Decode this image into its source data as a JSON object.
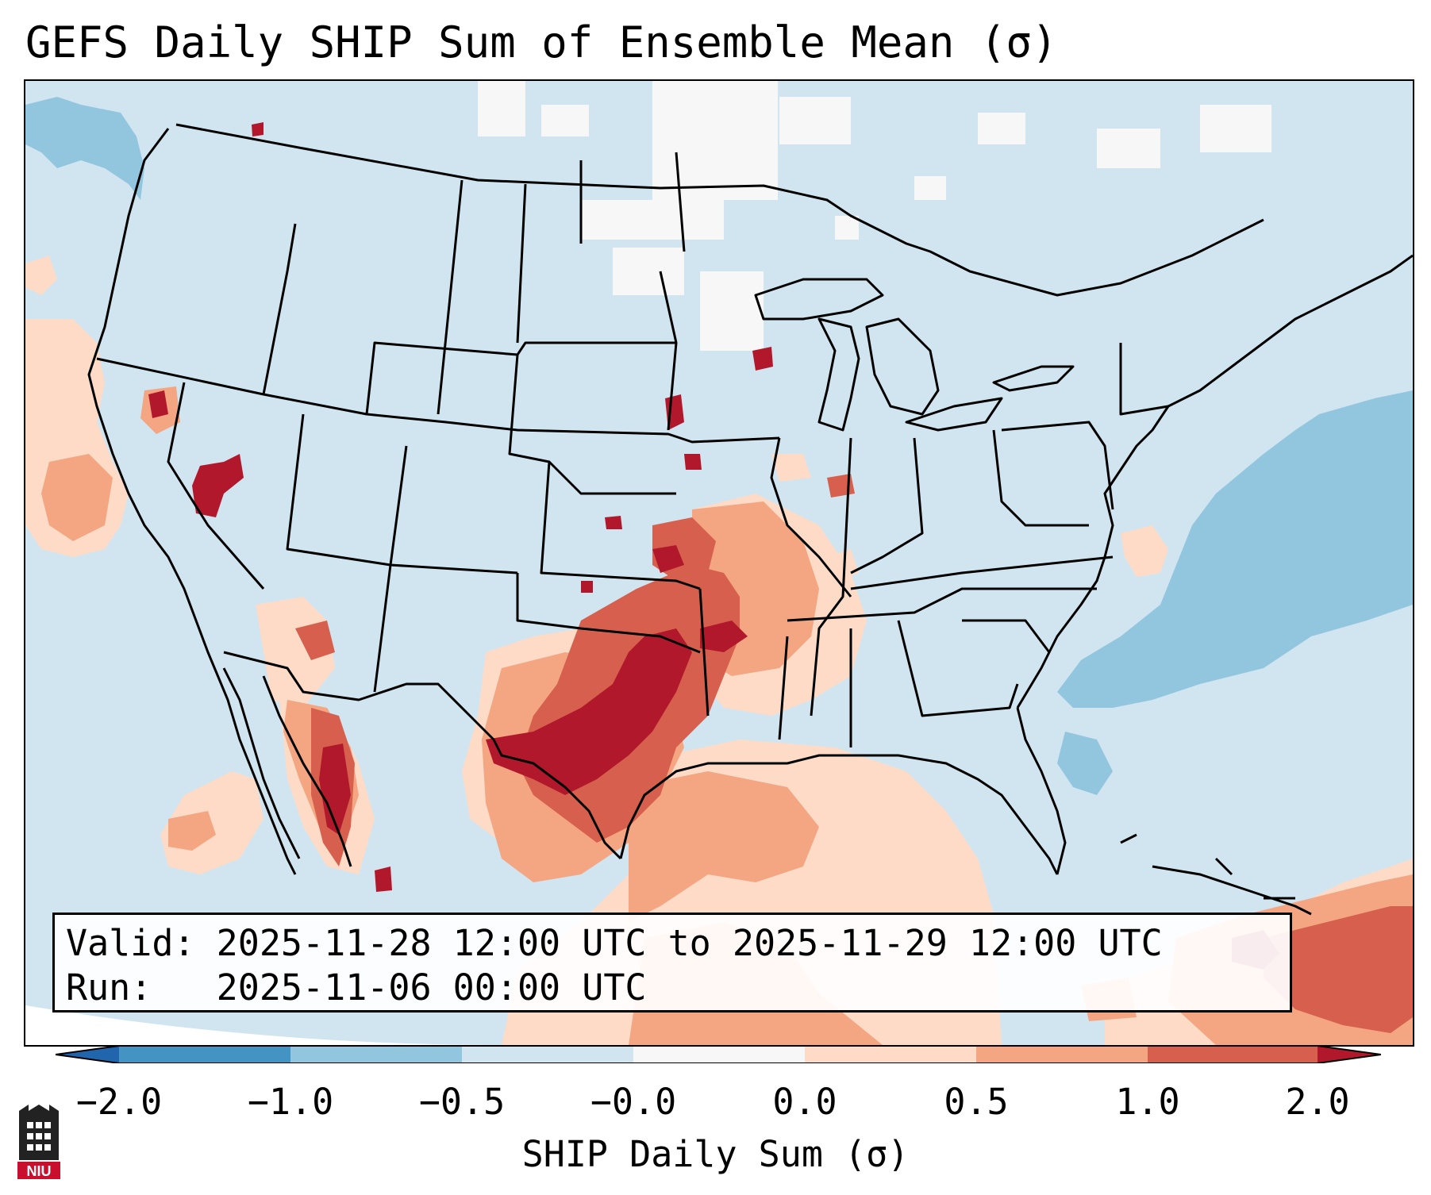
{
  "title": "GEFS Daily SHIP Sum of Ensemble Mean (σ)",
  "info": {
    "valid_label": "Valid:",
    "valid_value": "2025-11-28 12:00 UTC to 2025-11-29 12:00 UTC",
    "run_label": "Run:",
    "run_value": "2025-11-06 00:00 UTC"
  },
  "colorbar": {
    "label": "SHIP Daily Sum (σ)",
    "ticks": [
      "−2.0",
      "−1.0",
      "−0.5",
      "−0.0",
      "0.0",
      "0.5",
      "1.0",
      "2.0"
    ],
    "bins": [
      {
        "range": "< -2.0",
        "color": "#2166ac"
      },
      {
        "range": "-2.0 to -1.0",
        "color": "#4393c3"
      },
      {
        "range": "-1.0 to -0.5",
        "color": "#92c5de"
      },
      {
        "range": "-0.5 to -0.0",
        "color": "#d1e5f0"
      },
      {
        "range": "-0.0 to 0.0",
        "color": "#f7f7f7"
      },
      {
        "range": "0.0 to 0.5",
        "color": "#fddbc7"
      },
      {
        "range": "0.5 to 1.0",
        "color": "#f4a582"
      },
      {
        "range": "1.0 to 2.0",
        "color": "#d6604d"
      },
      {
        "range": "> 2.0",
        "color": "#b2182b"
      }
    ]
  },
  "map": {
    "region": "Contiguous United States",
    "background_color": "#d1e5f0",
    "outside_projection_color": "#ffffff"
  },
  "logo": {
    "text": "NIU",
    "color": "#c8102e"
  }
}
